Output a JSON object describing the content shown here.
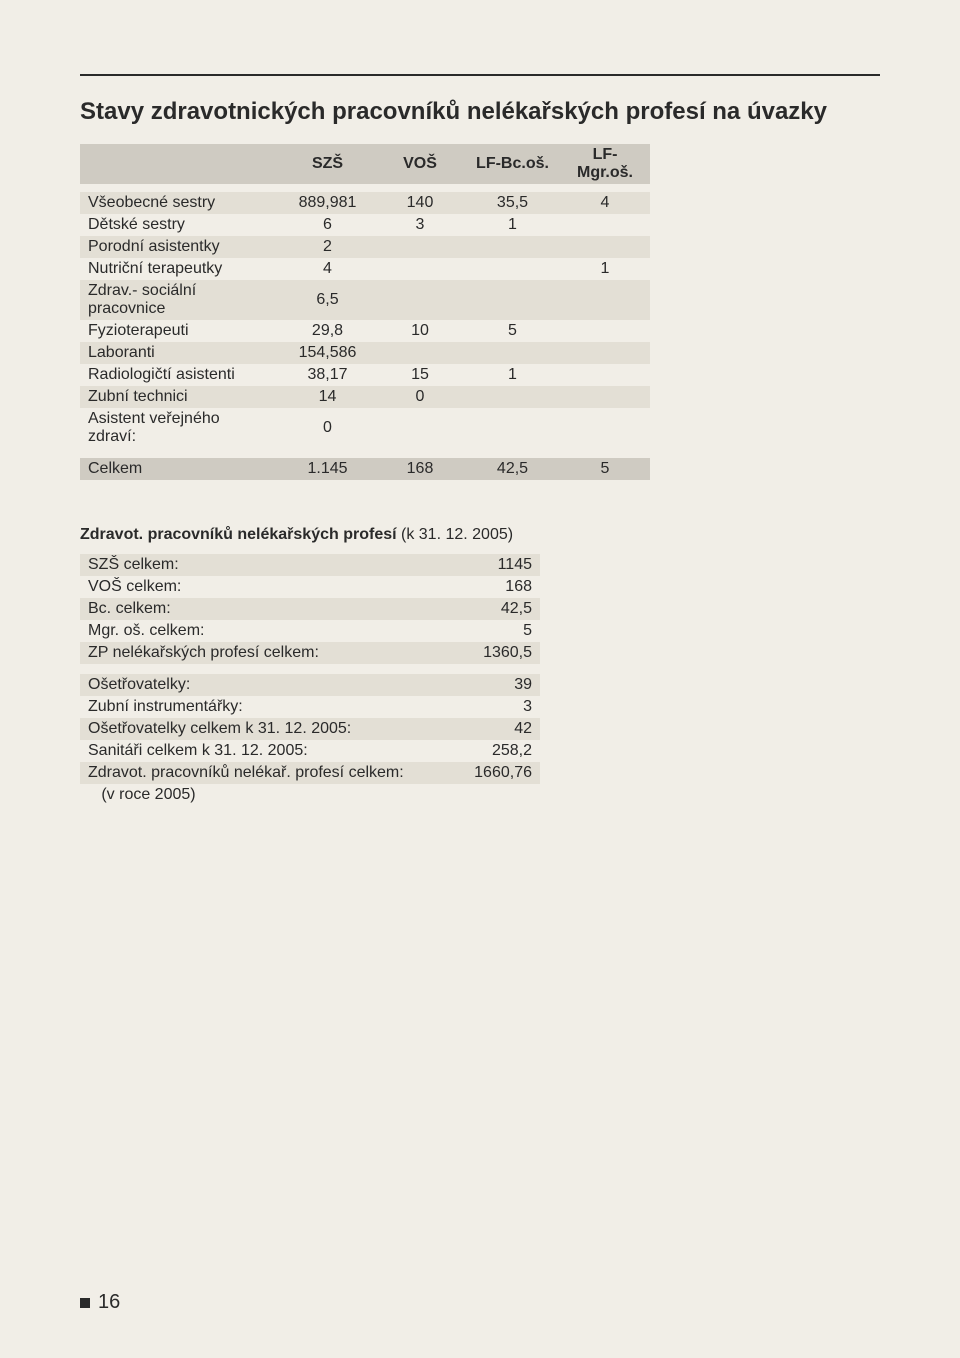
{
  "title": "Stavy zdravotnických pracovníků nelékařských profesí na úvazky",
  "mainTable": {
    "headers": [
      "",
      "SZŠ",
      "VOŠ",
      "LF-Bc.oš.",
      "LF-Mgr.oš."
    ],
    "rows": [
      {
        "label": "Všeobecné sestry",
        "c": [
          "889,981",
          "140",
          "35,5",
          "4"
        ],
        "shaded": true
      },
      {
        "label": "Dětské sestry",
        "c": [
          "6",
          "3",
          "1",
          ""
        ],
        "shaded": false
      },
      {
        "label": "Porodní asistentky",
        "c": [
          "2",
          "",
          "",
          ""
        ],
        "shaded": true
      },
      {
        "label": "Nutriční terapeutky",
        "c": [
          "4",
          "",
          "",
          "1"
        ],
        "shaded": false
      },
      {
        "label": "Zdrav.- sociální pracovnice",
        "c": [
          "6,5",
          "",
          "",
          ""
        ],
        "shaded": true
      },
      {
        "label": "Fyzioterapeuti",
        "c": [
          "29,8",
          "10",
          "5",
          ""
        ],
        "shaded": false
      },
      {
        "label": "Laboranti",
        "c": [
          "154,586",
          "",
          "",
          ""
        ],
        "shaded": true
      },
      {
        "label": "Radiologičtí asistenti",
        "c": [
          "38,17",
          "15",
          "1",
          ""
        ],
        "shaded": false
      },
      {
        "label": "Zubní technici",
        "c": [
          "14",
          "0",
          "",
          ""
        ],
        "shaded": true
      },
      {
        "label": "Asistent veřejného zdraví:",
        "c": [
          "0",
          "",
          "",
          ""
        ],
        "shaded": false
      }
    ],
    "totals": {
      "label": "Celkem",
      "c": [
        "1.145",
        "168",
        "42,5",
        "5"
      ]
    }
  },
  "subTitle": {
    "bold": "Zdravot. pracovníků nelékařských profesí",
    "rest": "  (k 31. 12. 2005)"
  },
  "summary": {
    "block1": [
      {
        "label": "SZŠ celkem:",
        "value": "1145",
        "shaded": true
      },
      {
        "label": "VOŠ celkem:",
        "value": "168",
        "shaded": false
      },
      {
        "label": "Bc. celkem:",
        "value": "42,5",
        "shaded": true
      },
      {
        "label": "Mgr. oš. celkem:",
        "value": "5",
        "shaded": false
      },
      {
        "label": "ZP nelékařských profesí celkem:",
        "value": "1360,5",
        "shaded": true
      }
    ],
    "block2": [
      {
        "label": "Ošetřovatelky:",
        "value": "39",
        "shaded": true
      },
      {
        "label": "Zubní instrumentářky:",
        "value": "3",
        "shaded": false
      },
      {
        "label": "Ošetřovatelky celkem k 31. 12. 2005:",
        "value": "42",
        "shaded": true
      },
      {
        "label": "Sanitáři celkem k 31. 12. 2005:",
        "value": "258,2",
        "shaded": false
      },
      {
        "label": "Zdravot. pracovníků nelékař. profesí celkem:",
        "value": "1660,76",
        "shaded": true
      },
      {
        "label": "   (v roce 2005)",
        "value": "",
        "shaded": false
      }
    ]
  },
  "pageNumber": "16"
}
